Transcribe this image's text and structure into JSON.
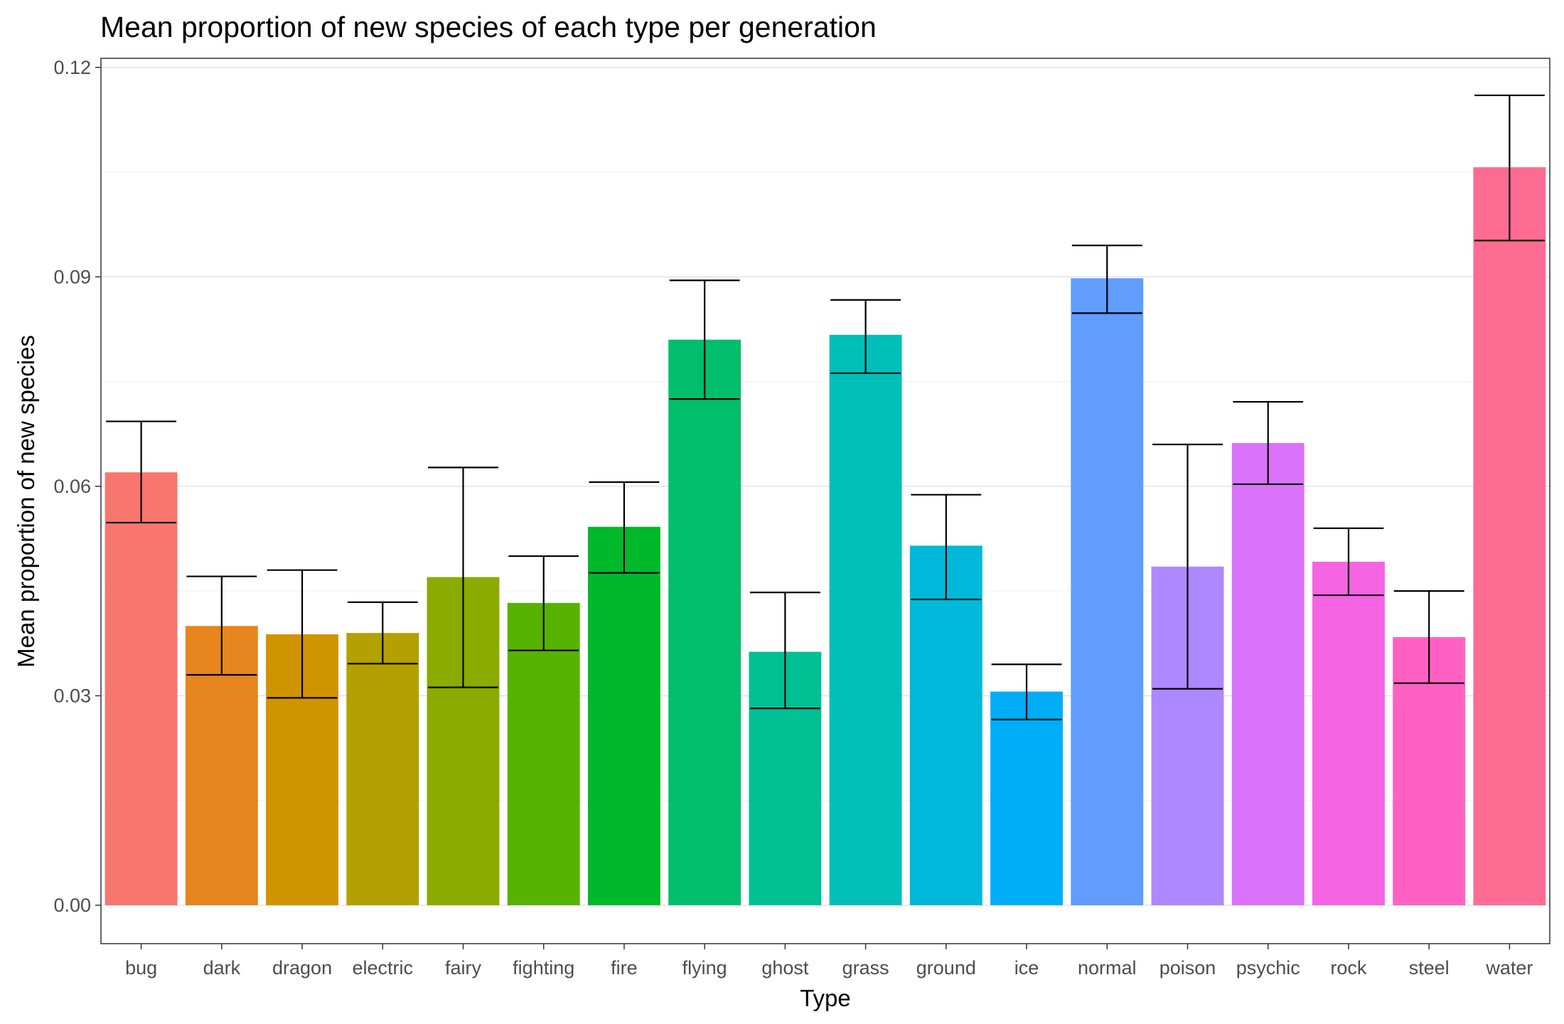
{
  "chart_data": {
    "type": "bar",
    "title": "Mean proportion of new species of each type per generation",
    "xlabel": "Type",
    "ylabel": "Mean proportion of new species",
    "ylim": [
      -0.0055,
      0.1213
    ],
    "y_ticks": [
      0.0,
      0.03,
      0.06,
      0.09,
      0.12
    ],
    "y_tick_labels": [
      "0.00",
      "0.03",
      "0.06",
      "0.09",
      "0.12"
    ],
    "grid": true,
    "legend": "none",
    "categories": [
      "bug",
      "dark",
      "dragon",
      "electric",
      "fairy",
      "fighting",
      "fire",
      "flying",
      "ghost",
      "grass",
      "ground",
      "ice",
      "normal",
      "poison",
      "psychic",
      "rock",
      "steel",
      "water"
    ],
    "values": [
      0.062,
      0.04,
      0.0388,
      0.039,
      0.047,
      0.0433,
      0.0542,
      0.081,
      0.0363,
      0.0817,
      0.0515,
      0.0306,
      0.0898,
      0.0485,
      0.0662,
      0.0492,
      0.0384,
      0.1057
    ],
    "error_low": [
      0.0548,
      0.033,
      0.0297,
      0.0346,
      0.0312,
      0.0365,
      0.0476,
      0.0725,
      0.0282,
      0.0762,
      0.0438,
      0.0266,
      0.0848,
      0.031,
      0.0603,
      0.0444,
      0.0318,
      0.0952
    ],
    "error_high": [
      0.0693,
      0.0471,
      0.048,
      0.0434,
      0.0627,
      0.05,
      0.0606,
      0.0895,
      0.0448,
      0.0867,
      0.0588,
      0.0345,
      0.0945,
      0.066,
      0.0721,
      0.054,
      0.045,
      0.116
    ],
    "colors": [
      "#F8766D",
      "#E7851E",
      "#D09400",
      "#B2A100",
      "#8BAB00",
      "#55B300",
      "#00B92A",
      "#00BE6B",
      "#00C094",
      "#00BFB9",
      "#00B9DA",
      "#00ADF7",
      "#619CFF",
      "#AD88FF",
      "#DB72FB",
      "#F564E3",
      "#FF61C3",
      "#FF6C93"
    ]
  }
}
